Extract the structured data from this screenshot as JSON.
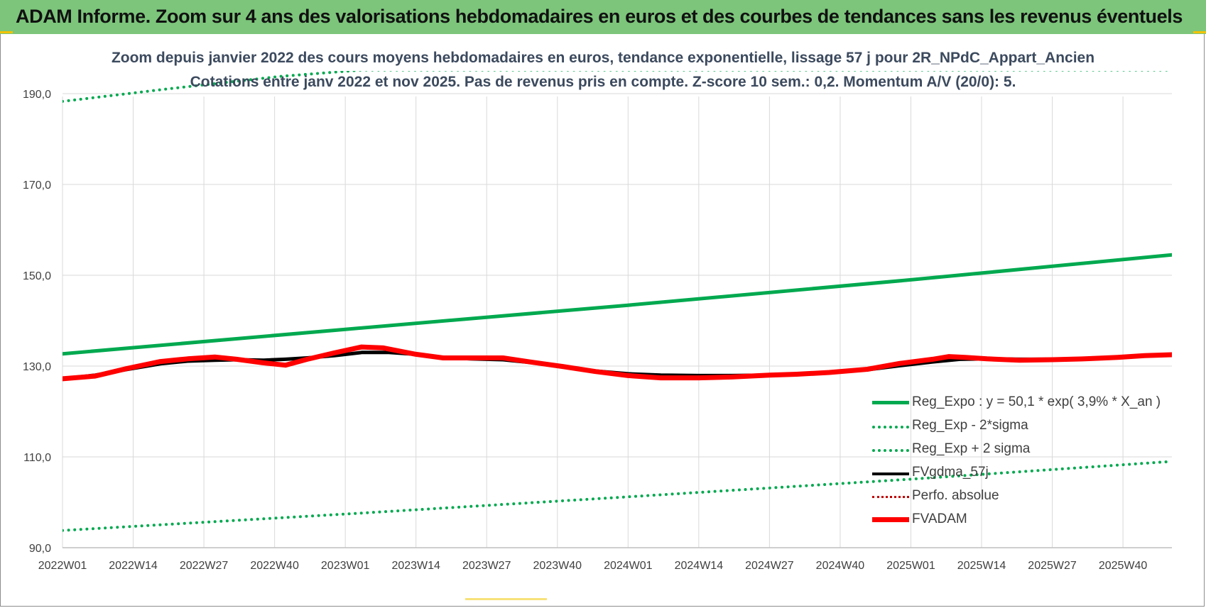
{
  "banner": {
    "title": "ADAM Informe. Zoom sur 4 ans des valorisations hebdomadaires en euros et des courbes de tendances sans les revenus éventuels"
  },
  "colors": {
    "banner_bg": "#7cc57b",
    "trend": "#00a94f",
    "fvadam": "#ff0000",
    "fvgdma": "#000000",
    "perfo": "#c00000",
    "grid": "#d9d9d9"
  },
  "chart_data": {
    "type": "line",
    "title_line1": "Zoom depuis janvier 2022 des cours moyens hebdomadaires en euros, tendance exponentielle, lissage 57 j pour 2R_NPdC_Appart_Ancien",
    "title_line2": "Cotations entre janv 2022 et nov 2025. Pas de revenus pris en compte. Z-score 10 sem.: 0,2. Momentum A/V (20/0): 5.",
    "ylim": [
      90,
      195
    ],
    "yticks": [
      90,
      110,
      130,
      150,
      170,
      190
    ],
    "ytick_labels": [
      "90,0",
      "110,0",
      "130,0",
      "150,0",
      "170,0",
      "190,0"
    ],
    "x_index_range": [
      0,
      204
    ],
    "xticks": [
      0,
      13,
      26,
      39,
      52,
      65,
      78,
      91,
      104,
      117,
      130,
      143,
      156,
      169,
      182,
      195
    ],
    "xtick_labels": [
      "2022W01",
      "2022W14",
      "2022W27",
      "2022W40",
      "2023W01",
      "2023W14",
      "2023W27",
      "2023W40",
      "2024W01",
      "2024W14",
      "2024W27",
      "2024W40",
      "2025W01",
      "2025W14",
      "2025W27",
      "2025W40"
    ],
    "legend": [
      {
        "name": "Reg_Expo : y = 50,1 * exp( 3,9% *  X_an )",
        "style": "solid-green"
      },
      {
        "name": "Reg_Exp - 2*sigma",
        "style": "dotted-green"
      },
      {
        "name": "Reg_Exp + 2 sigma",
        "style": "dotted-green"
      },
      {
        "name": "FVgdma_57j",
        "style": "solid-black"
      },
      {
        "name": "Perfo. absolue",
        "style": "dotted-red"
      },
      {
        "name": "FVADAM",
        "style": "solid-red"
      }
    ],
    "series": [
      {
        "name": "Reg_Expo",
        "x": [
          0,
          52,
          104,
          156,
          204
        ],
        "values": [
          132.7,
          138.1,
          143.4,
          149.0,
          154.5
        ]
      },
      {
        "name": "Reg_Exp - 2*sigma",
        "x": [
          0,
          52,
          104,
          156,
          204
        ],
        "values": [
          93.8,
          97.4,
          101.2,
          105.1,
          109.0
        ]
      },
      {
        "name": "Reg_Exp + 2 sigma",
        "x": [
          0,
          19,
          40,
          55,
          180,
          204
        ],
        "values": [
          188.3,
          191.0,
          193.8,
          195.2,
          195.2,
          195.2
        ]
      },
      {
        "name": "FVgdma_57j",
        "x": [
          0,
          6,
          12,
          18,
          23,
          28,
          32,
          37,
          41,
          45,
          50,
          55,
          60,
          65,
          70,
          75,
          81,
          86,
          92,
          98,
          104,
          110,
          117,
          123,
          130,
          135,
          141,
          148,
          154,
          160,
          165,
          170,
          176,
          182,
          188,
          194,
          199,
          204
        ],
        "values": [
          127.2,
          128.0,
          129.3,
          130.5,
          131.1,
          131.3,
          131.4,
          131.3,
          131.5,
          131.8,
          132.3,
          133.0,
          133.0,
          132.6,
          131.9,
          131.6,
          131.4,
          130.8,
          129.8,
          128.9,
          128.3,
          128.0,
          127.9,
          127.9,
          128.0,
          128.2,
          128.6,
          129.2,
          130.1,
          130.9,
          131.5,
          131.6,
          131.5,
          131.5,
          131.6,
          131.9,
          132.2,
          132.5
        ]
      },
      {
        "name": "FVADAM",
        "x": [
          0,
          6,
          12,
          18,
          23,
          28,
          32,
          37,
          41,
          45,
          50,
          55,
          59,
          62,
          65,
          70,
          75,
          81,
          86,
          92,
          98,
          104,
          110,
          117,
          123,
          130,
          135,
          141,
          148,
          154,
          160,
          163,
          166,
          170,
          176,
          182,
          188,
          194,
          199,
          204
        ],
        "values": [
          127.2,
          127.8,
          129.5,
          131.0,
          131.6,
          132.0,
          131.5,
          130.7,
          130.2,
          131.5,
          132.9,
          134.2,
          134.0,
          133.3,
          132.6,
          131.8,
          131.8,
          131.8,
          130.9,
          129.9,
          128.8,
          127.9,
          127.4,
          127.4,
          127.6,
          128.0,
          128.2,
          128.6,
          129.3,
          130.6,
          131.5,
          132.1,
          131.9,
          131.6,
          131.3,
          131.4,
          131.6,
          131.9,
          132.3,
          132.5
        ]
      }
    ]
  }
}
